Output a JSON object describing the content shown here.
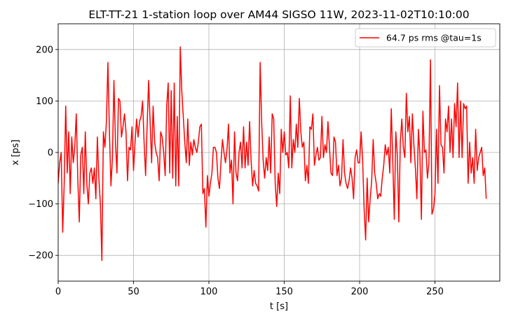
{
  "chart_data": {
    "type": "line",
    "title": "ELT-TT-21 1-station loop over AM44 SIGSO 11W, 2023-11-02T10:10:00",
    "xlabel": "t [s]",
    "ylabel": "x [ps]",
    "xlim": [
      0,
      293
    ],
    "ylim": [
      -250,
      250
    ],
    "x_ticks": [
      0,
      50,
      100,
      150,
      200,
      250
    ],
    "y_ticks": [
      -200,
      -100,
      0,
      100,
      200
    ],
    "y_tick_labels": [
      "−200",
      "−100",
      "0",
      "100",
      "200"
    ],
    "grid": true,
    "legend_position": "top-right",
    "series": [
      {
        "name": "64.7 ps rms @tau=1s",
        "color": "#ff0000",
        "x_start": 0,
        "x_step": 1,
        "values": [
          -60,
          -20,
          0,
          -155,
          -60,
          90,
          -40,
          40,
          -80,
          30,
          -20,
          10,
          75,
          -50,
          -135,
          -5,
          10,
          -80,
          40,
          -60,
          -100,
          -40,
          -30,
          -60,
          -30,
          -90,
          30,
          -50,
          -100,
          -210,
          40,
          10,
          60,
          175,
          40,
          -65,
          -10,
          140,
          20,
          -40,
          105,
          100,
          30,
          50,
          75,
          40,
          -55,
          10,
          5,
          50,
          -35,
          20,
          65,
          30,
          60,
          70,
          100,
          20,
          -45,
          50,
          140,
          60,
          -20,
          90,
          20,
          0,
          -10,
          -55,
          40,
          30,
          0,
          -45,
          90,
          135,
          -40,
          120,
          -50,
          135,
          -65,
          70,
          -65,
          205,
          120,
          70,
          20,
          -20,
          65,
          -25,
          20,
          -5,
          25,
          10,
          0,
          20,
          50,
          55,
          -80,
          -70,
          -145,
          -45,
          -85,
          -60,
          -40,
          10,
          10,
          0,
          -50,
          -70,
          -20,
          25,
          0,
          -20,
          5,
          55,
          -40,
          -15,
          -100,
          40,
          -40,
          -55,
          0,
          20,
          -30,
          50,
          -30,
          20,
          -25,
          60,
          -15,
          -65,
          -35,
          -60,
          -65,
          -75,
          175,
          60,
          -15,
          -50,
          -10,
          -35,
          30,
          -40,
          75,
          65,
          -60,
          -105,
          -40,
          -80,
          45,
          0,
          40,
          -5,
          0,
          -30,
          110,
          -30,
          25,
          0,
          55,
          10,
          105,
          40,
          10,
          20,
          -55,
          -25,
          -60,
          50,
          45,
          75,
          -25,
          -5,
          10,
          -15,
          -10,
          70,
          -10,
          15,
          0,
          60,
          10,
          -40,
          -45,
          30,
          20,
          -45,
          -25,
          -65,
          -50,
          25,
          -40,
          -60,
          -70,
          -55,
          -30,
          -50,
          -90,
          -10,
          5,
          -20,
          -20,
          40,
          -15,
          -110,
          -170,
          -50,
          -135,
          -90,
          -55,
          25,
          -40,
          -60,
          -90,
          -80,
          -85,
          -50,
          -25,
          15,
          -5,
          10,
          -40,
          85,
          -15,
          -130,
          40,
          -5,
          -135,
          20,
          65,
          10,
          -10,
          115,
          40,
          70,
          -20,
          75,
          15,
          -30,
          -90,
          45,
          -5,
          -130,
          80,
          0,
          5,
          -50,
          -20,
          180,
          -120,
          -110,
          -80,
          45,
          -60,
          130,
          15,
          10,
          -40,
          65,
          40,
          90,
          0,
          65,
          -10,
          95,
          50,
          135,
          -10,
          100,
          -10,
          95,
          85,
          90,
          -60,
          20,
          -40,
          -10,
          -60,
          45,
          -35,
          -10,
          0,
          10,
          -45,
          -30,
          -90
        ]
      }
    ]
  }
}
